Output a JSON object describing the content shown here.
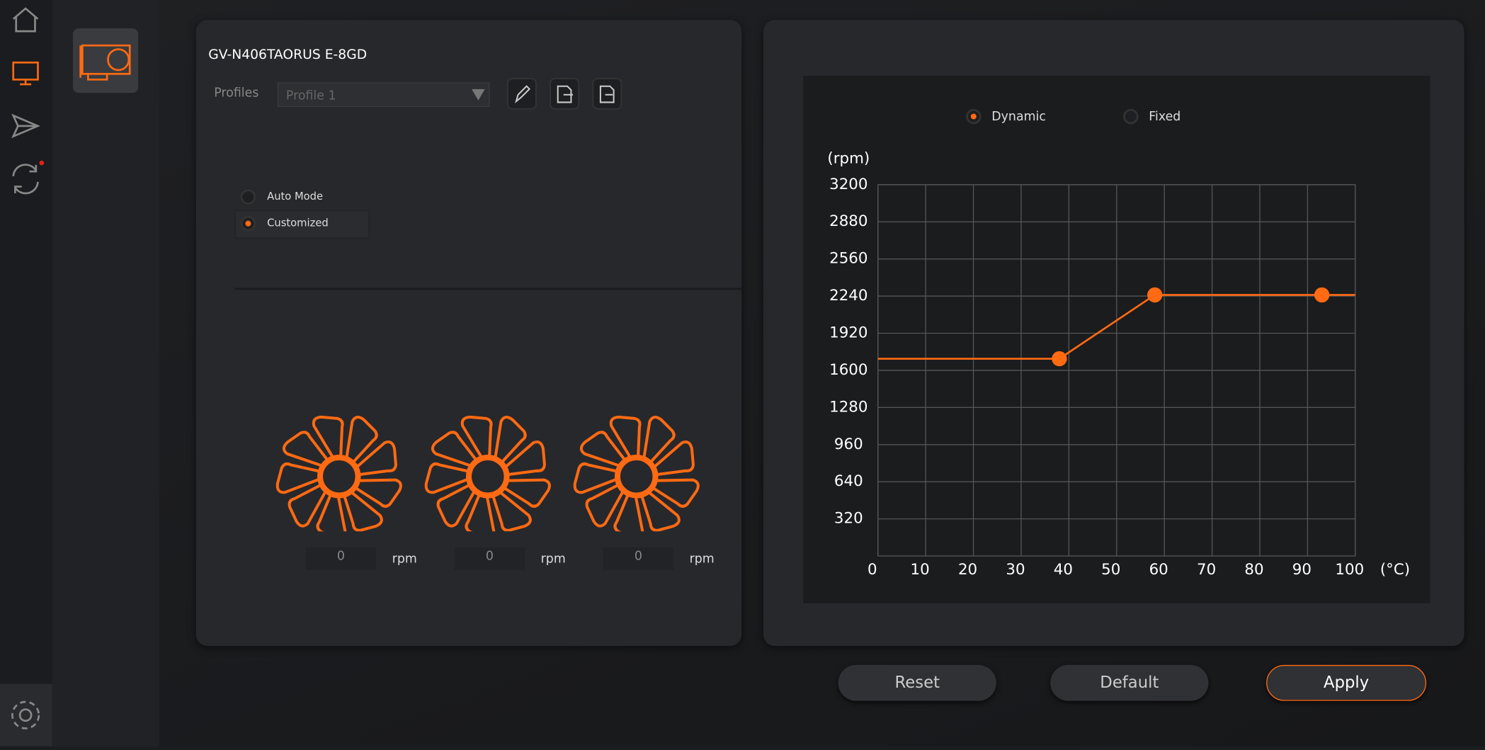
{
  "device": {
    "name": "GV-N406TAORUS E-8GD",
    "profiles_label": "Profiles",
    "profile": "Profile 1"
  },
  "modes": {
    "auto": "Auto Mode",
    "customized": "Customized"
  },
  "fans": [
    {
      "speed": "0",
      "unit": "rpm"
    },
    {
      "speed": "0",
      "unit": "rpm"
    },
    {
      "speed": "0",
      "unit": "rpm"
    }
  ],
  "curve_modes": {
    "dynamic": "Dynamic",
    "fixed": "Fixed"
  },
  "chart_data": {
    "type": "line",
    "y_label": "(rpm)",
    "x_label": "(°C)",
    "x": [
      0,
      38,
      58,
      93,
      100
    ],
    "series": [
      {
        "color": "#ff6a13",
        "values": [
          1700,
          1700,
          2250,
          2250,
          2250
        ]
      }
    ],
    "xlim": [
      0,
      100
    ],
    "xticks": [
      0,
      10,
      20,
      30,
      40,
      50,
      60,
      70,
      80,
      90,
      100
    ],
    "ylim": [
      0,
      3200
    ],
    "yticks": [
      320,
      640,
      960,
      1280,
      1600,
      1920,
      2240,
      2560,
      2880,
      3200
    ],
    "grid": true
  },
  "buttons": {
    "reset": "Reset",
    "default": "Default",
    "apply": "Apply"
  }
}
